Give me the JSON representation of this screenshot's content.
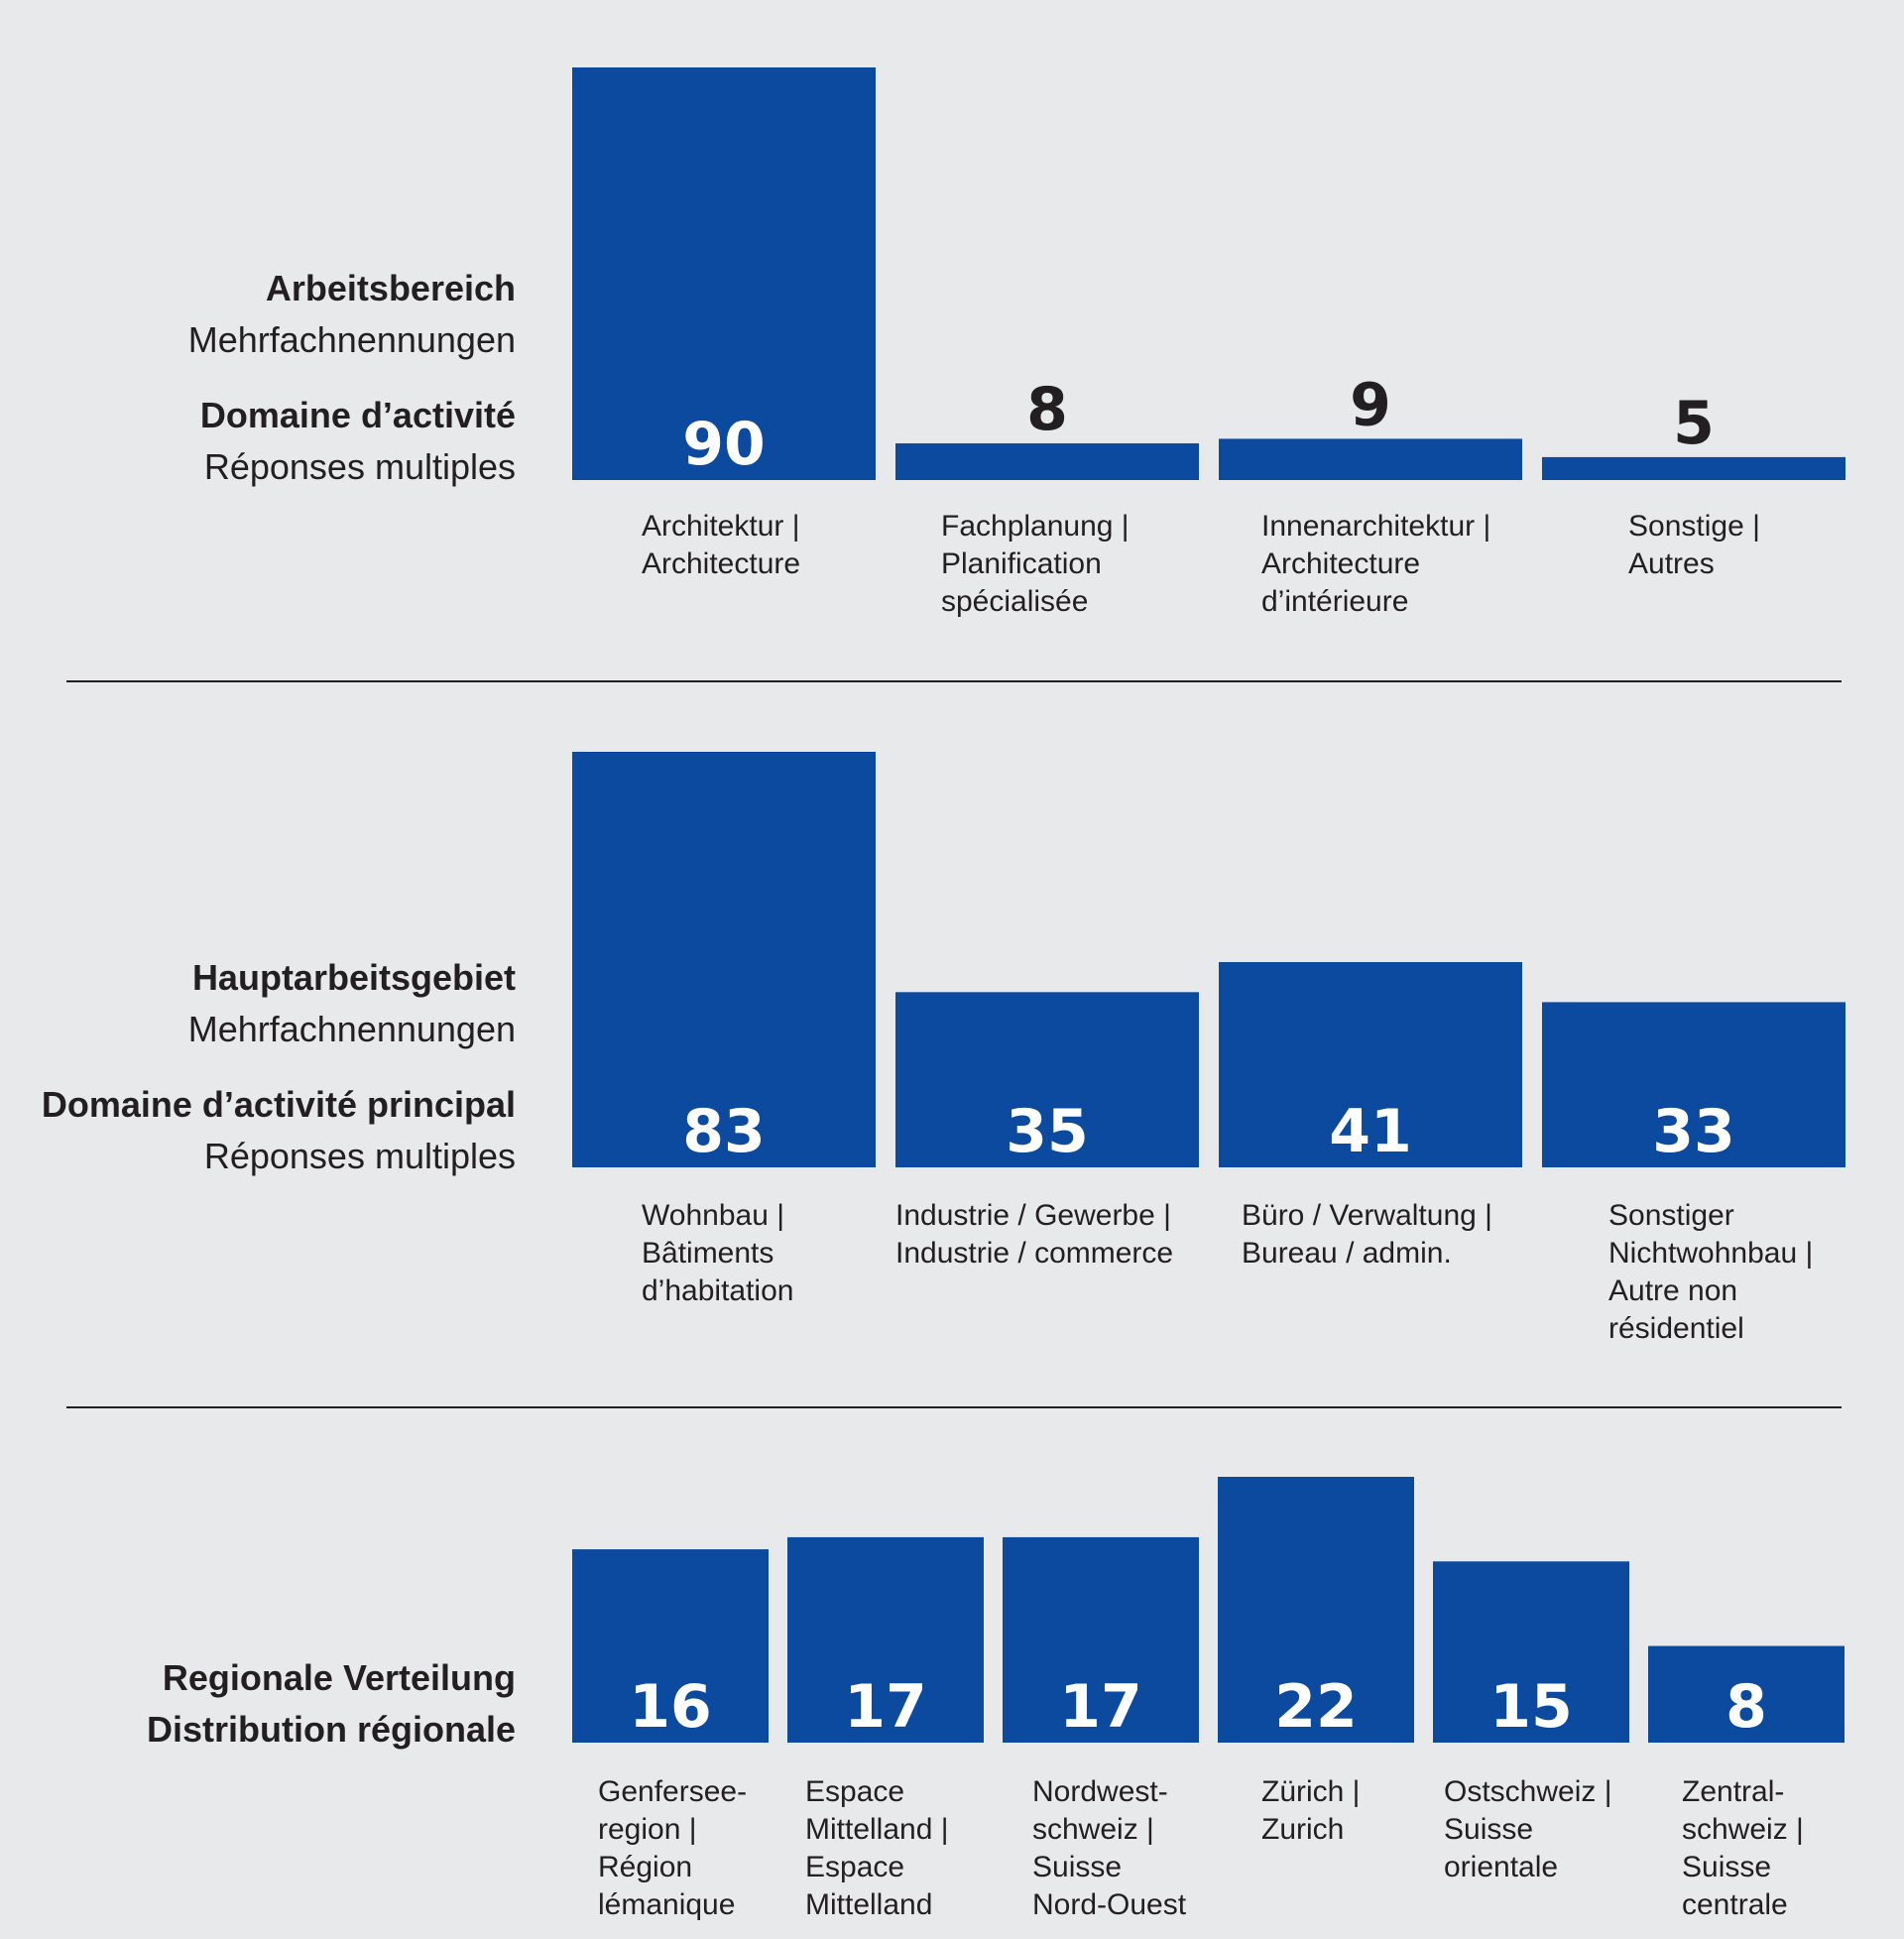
{
  "colors": {
    "bar": "#0c4a9f",
    "background": "#e8e9eb",
    "text": "#231f20",
    "value_inside": "#ffffff"
  },
  "panels": [
    {
      "title_de": "Arbeitsbereich",
      "subtitle_de": "Mehrfachnennungen",
      "title_fr": "Domaine d’activité",
      "subtitle_fr": "Réponses multiples"
    },
    {
      "title_de": "Hauptarbeitsgebiet",
      "subtitle_de": "Mehrfachnennungen",
      "title_fr": "Domaine d’activité principal",
      "subtitle_fr": "Réponses multiples"
    },
    {
      "title_de": "Regionale Verteilung",
      "title_fr": "Distribution régionale"
    }
  ],
  "chart_data": [
    {
      "type": "bar",
      "categories": [
        [
          "Architektur |",
          "Architecture"
        ],
        [
          "Fachplanung |",
          "Planification",
          "spécialisée"
        ],
        [
          "Innenarchitektur |",
          "Architecture",
          "d’intérieure"
        ],
        [
          "Sonstige |",
          "Autres"
        ]
      ],
      "values": [
        90,
        8,
        9,
        5
      ],
      "ylim": [
        0,
        90
      ]
    },
    {
      "type": "bar",
      "categories": [
        [
          "Wohnbau |",
          "Bâtiments",
          "d’habitation"
        ],
        [
          "Industrie / Gewerbe |",
          "Industrie / commerce"
        ],
        [
          "Büro / Verwaltung |",
          "Bureau / admin."
        ],
        [
          "Sonstiger",
          "Nichtwohnbau |",
          "Autre non",
          "résidentiel"
        ]
      ],
      "values": [
        83,
        35,
        41,
        33
      ],
      "ylim": [
        0,
        83
      ]
    },
    {
      "type": "bar",
      "categories": [
        [
          "Genfersee-",
          "region |",
          "Région",
          "lémanique"
        ],
        [
          "Espace",
          "Mittelland |",
          "Espace",
          "Mittelland"
        ],
        [
          "Nordwest-",
          "schweiz |",
          "Suisse",
          "Nord-Ouest"
        ],
        [
          "Zürich |",
          "Zurich"
        ],
        [
          "Ostschweiz |",
          "Suisse",
          "orientale"
        ],
        [
          "Zentral-",
          "schweiz |",
          "Suisse",
          "centrale"
        ]
      ],
      "values": [
        16,
        17,
        17,
        22,
        15,
        8
      ],
      "ylim": [
        0,
        22
      ]
    }
  ]
}
